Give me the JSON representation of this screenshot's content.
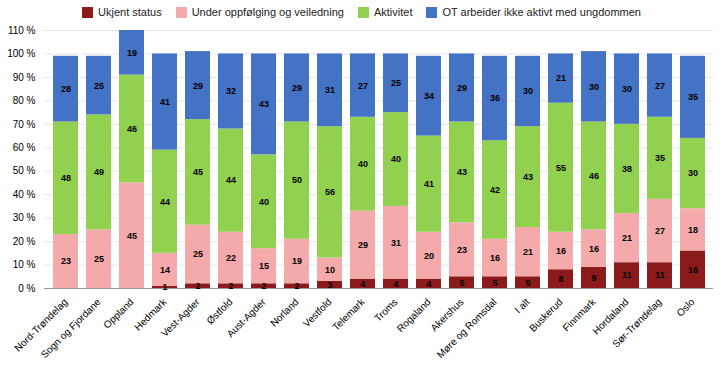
{
  "chart_data": {
    "type": "bar",
    "stacked": true,
    "categories": [
      "Nord-Trøndelag",
      "Sogn og Fjordane",
      "Oppland",
      "Hedmark",
      "Vest-Agder",
      "Østfold",
      "Aust-Agder",
      "Norland",
      "Vestfold",
      "Telemark",
      "Troms",
      "Rogaland",
      "Akershus",
      "Møre og Romsdal",
      "I alt",
      "Buskerud",
      "Finnmark",
      "Hordaland",
      "Sør-Trøndelag",
      "Oslo"
    ],
    "series": [
      {
        "name": "Ukjent status",
        "color": "#8B1A1A",
        "values": [
          0,
          0,
          0,
          1,
          2,
          2,
          2,
          2,
          3,
          4,
          4,
          4,
          5,
          5,
          5,
          8,
          9,
          11,
          11,
          16
        ]
      },
      {
        "name": "Under oppfølging og veiledning",
        "color": "#F4AAAA",
        "values": [
          23,
          25,
          45,
          14,
          25,
          22,
          15,
          19,
          10,
          29,
          31,
          20,
          23,
          16,
          21,
          16,
          16,
          21,
          27,
          18
        ]
      },
      {
        "name": "Aktivitet",
        "color": "#92D050",
        "values": [
          48,
          49,
          46,
          44,
          45,
          44,
          40,
          50,
          56,
          40,
          40,
          41,
          43,
          42,
          43,
          55,
          46,
          38,
          35,
          30
        ]
      },
      {
        "name": "OT arbeider ikke aktivt med ungdommen",
        "color": "#4472C4",
        "values": [
          28,
          25,
          19,
          41,
          29,
          32,
          43,
          29,
          31,
          27,
          25,
          34,
          29,
          36,
          30,
          21,
          30,
          30,
          27,
          35
        ]
      }
    ],
    "ylim": [
      0,
      110
    ],
    "yticks": [
      {
        "value": 0,
        "label": "0 %"
      },
      {
        "value": 10,
        "label": "10 %"
      },
      {
        "value": 20,
        "label": "20 %"
      },
      {
        "value": 30,
        "label": "30 %"
      },
      {
        "value": 40,
        "label": "40 %"
      },
      {
        "value": 50,
        "label": "50 %"
      },
      {
        "value": 60,
        "label": "60 %"
      },
      {
        "value": 70,
        "label": "70 %"
      },
      {
        "value": 80,
        "label": "80 %"
      },
      {
        "value": 90,
        "label": "90 %"
      },
      {
        "value": 100,
        "label": "100 %"
      },
      {
        "value": 110,
        "label": "110 %"
      }
    ],
    "grid": true,
    "legend": "top",
    "data_labels": true
  }
}
